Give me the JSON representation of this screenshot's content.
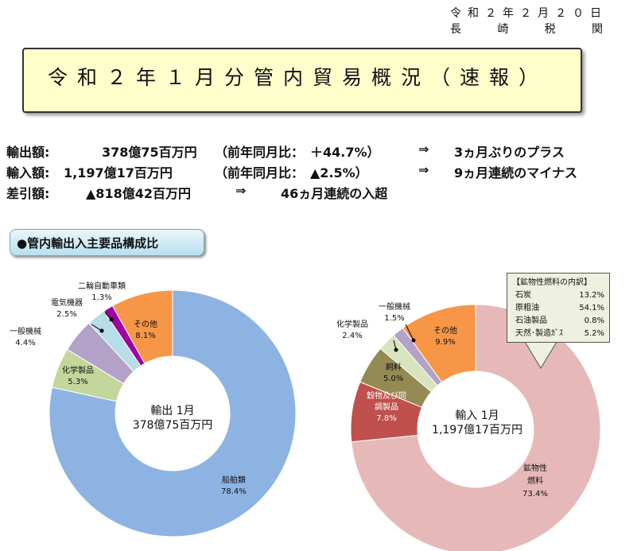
{
  "header": {
    "date": "令和２年２月２０日",
    "org": [
      "長",
      "崎",
      "税",
      "関"
    ],
    "title": "令和２年１月分管内貿易概況（速報）"
  },
  "summary": [
    {
      "label": "輸出額:",
      "amount": "378億75百万円",
      "compare": "（前年同月比：　＋44.7%）",
      "arrow": "⇒",
      "note": "3ヵ月ぶりのプラス"
    },
    {
      "label": "輸入額:",
      "amount": "1,197億17百万円",
      "compare": "（前年同月比：　▲2.5%）",
      "arrow": "⇒",
      "note": "9ヵ月連続のマイナス"
    },
    {
      "label": "差引額:",
      "amount": "▲818億42百万円",
      "arrow": "⇒",
      "note": "46ヵ月連続の入超"
    }
  ],
  "section_title": "●管内輸出入主要品構成比",
  "callout": {
    "title": "【鉱物性燃料の内訳】",
    "rows": [
      [
        "石炭",
        "13.2%"
      ],
      [
        "原粗油",
        "54.1%"
      ],
      [
        "石油製品",
        "0.8%"
      ],
      [
        "天然･製造ｶﾞｽ",
        "5.2%"
      ]
    ]
  },
  "chart_data": [
    {
      "type": "pie",
      "title": "輸出 1月",
      "subtitle": "378億75百万円",
      "categories": [
        "船舶類",
        "化学製品",
        "一般機械",
        "電気機器",
        "二輪自動車類",
        "その他"
      ],
      "values": [
        78.4,
        5.3,
        4.4,
        2.5,
        1.3,
        8.1
      ],
      "labels": [
        "78.4%",
        "5.3%",
        "4.4%",
        "2.5%",
        "1.3%",
        "8.1%"
      ],
      "colors": [
        "#8db3e2",
        "#c3d69b",
        "#b3a2c7",
        "#b7dee8",
        "#a000a0",
        "#f79646"
      ]
    },
    {
      "type": "pie",
      "title": "輸入 1月",
      "subtitle": "1,197億17百万円",
      "categories": [
        "鉱物性燃料",
        "穀物及び同調製品",
        "飼料",
        "化学製品",
        "一般機械",
        "その他"
      ],
      "values": [
        73.4,
        7.8,
        5.0,
        2.4,
        1.5,
        9.9
      ],
      "labels": [
        "73.4%",
        "7.8%",
        "5.0%",
        "2.4%",
        "1.5%",
        "9.9%"
      ],
      "colors": [
        "#e6b9b8",
        "#c0504d",
        "#948a54",
        "#d7e4bd",
        "#b3a2c7",
        "#f79646"
      ]
    }
  ]
}
